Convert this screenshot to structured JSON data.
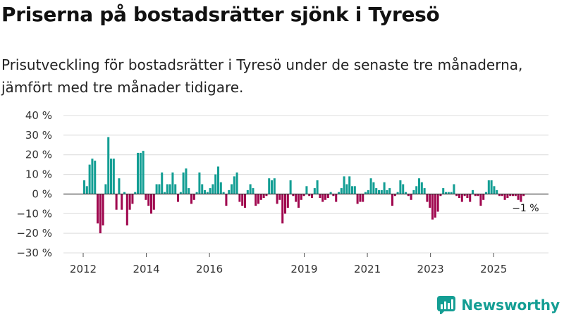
{
  "title": "Priserna på bostadsrätter sjönk i Tyresö",
  "subtitle": "Prisutveckling för bostadsrätter i Tyresö under de senaste tre månaderna, jämfört med tre månader tidigare.",
  "brand": "Newsworthy",
  "colors": {
    "positive": "#139e94",
    "negative": "#a0084f",
    "grid": "#dcdcdc",
    "brand": "#149e94"
  },
  "chart_data": {
    "type": "bar",
    "ylabel_unit": "%",
    "ylim": [
      -30,
      40
    ],
    "yticks": [
      40,
      30,
      20,
      10,
      0,
      -10,
      -20,
      -30
    ],
    "ytick_labels": [
      "40 %",
      "30 %",
      "20 %",
      "10 %",
      "0 %",
      "−10 %",
      "−20 %",
      "−30 %"
    ],
    "x_start": 2012.0,
    "x_end": 2026.0,
    "x_step_months": 1,
    "xtick_labels": [
      {
        "label": "2012",
        "year": 2012.0
      },
      {
        "label": "2014",
        "year": 2014.0
      },
      {
        "label": "2016",
        "year": 2016.0
      },
      {
        "label": "2019",
        "year": 2019.0
      },
      {
        "label": "2021",
        "year": 2021.0
      },
      {
        "label": "2023",
        "year": 2023.0
      },
      {
        "label": "2025",
        "year": 2025.0
      }
    ],
    "annotation": {
      "text": "−1 %",
      "value": -1
    },
    "values": [
      7,
      4,
      15,
      18,
      17,
      -15,
      -20,
      -16,
      5,
      29,
      18,
      18,
      -8,
      8,
      -8,
      1,
      -16,
      -8,
      -5,
      1,
      21,
      21,
      22,
      -3,
      -6,
      -10,
      -8,
      5,
      5,
      11,
      1,
      5,
      5,
      11,
      5,
      -4,
      1,
      11,
      13,
      3,
      -5,
      -3,
      1,
      11,
      5,
      2,
      1,
      3,
      5,
      10,
      14,
      6,
      1,
      -6,
      2,
      5,
      9,
      11,
      -4,
      -6,
      -7,
      2,
      5,
      3,
      -6,
      -5,
      -3,
      -2,
      -1,
      8,
      7,
      8,
      -5,
      -3,
      -15,
      -10,
      -7,
      7,
      -1,
      -4,
      -7,
      -3,
      -1,
      4,
      -1,
      -2,
      3,
      7,
      -2,
      -4,
      -3,
      -2,
      1,
      -1,
      -4,
      1,
      3,
      9,
      5,
      9,
      4,
      4,
      -5,
      -4,
      -4,
      1,
      2,
      8,
      6,
      3,
      2,
      2,
      6,
      2,
      3,
      -6,
      -1,
      1,
      7,
      5,
      1,
      -1,
      -3,
      2,
      4,
      8,
      6,
      3,
      -4,
      -7,
      -13,
      -12,
      -9,
      -1,
      3,
      1,
      1,
      1,
      5,
      -1,
      -2,
      -4,
      -1,
      -2,
      -4,
      2,
      -1,
      -1,
      -6,
      -3,
      1,
      7,
      7,
      4,
      2,
      -1,
      -1,
      -3,
      -2,
      -1,
      -1,
      -1,
      -3,
      -4,
      -1
    ]
  }
}
